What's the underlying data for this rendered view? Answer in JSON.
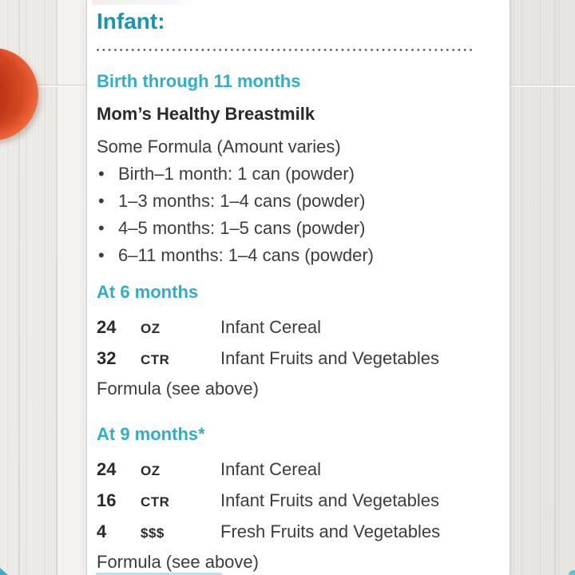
{
  "title": "Infant:",
  "sections": {
    "birth": {
      "heading": "Birth through 11 months",
      "milk": "Mom’s Healthy Breastmilk",
      "formula_intro": "Some Formula (Amount varies)",
      "bullets": [
        "Birth–1 month: 1 can (powder)",
        "1–3 months: 1–4 cans (powder)",
        "4–5 months: 1–5 cans (powder)",
        "6–11 months: 1–4 cans (powder)"
      ]
    },
    "six": {
      "heading": "At 6 months",
      "rows": [
        {
          "qty": "24",
          "unit": "OZ",
          "item": "Infant Cereal"
        },
        {
          "qty": "32",
          "unit": "CTR",
          "item": "Infant Fruits and Vegetables"
        }
      ],
      "footer": "Formula (see above)"
    },
    "nine": {
      "heading": "At 9 months*",
      "rows": [
        {
          "qty": "24",
          "unit": "OZ",
          "item": "Infant Cereal"
        },
        {
          "qty": "16",
          "unit": "CTR",
          "item": "Infant Fruits and Vegetables"
        },
        {
          "qty": "4",
          "unit": "$$$",
          "item": "Fresh Fruits and Vegetables"
        }
      ],
      "footer": "Formula (see above)"
    }
  },
  "colors": {
    "title_teal": "#1795B5",
    "subheading_cyan": "#2FAECB",
    "body_text": "#3C3C3C",
    "bold_text": "#2A2A2A",
    "tomato_red": "#E2512A",
    "card_background": "#FFFFFF",
    "wood_background": "#ECEAE6"
  }
}
